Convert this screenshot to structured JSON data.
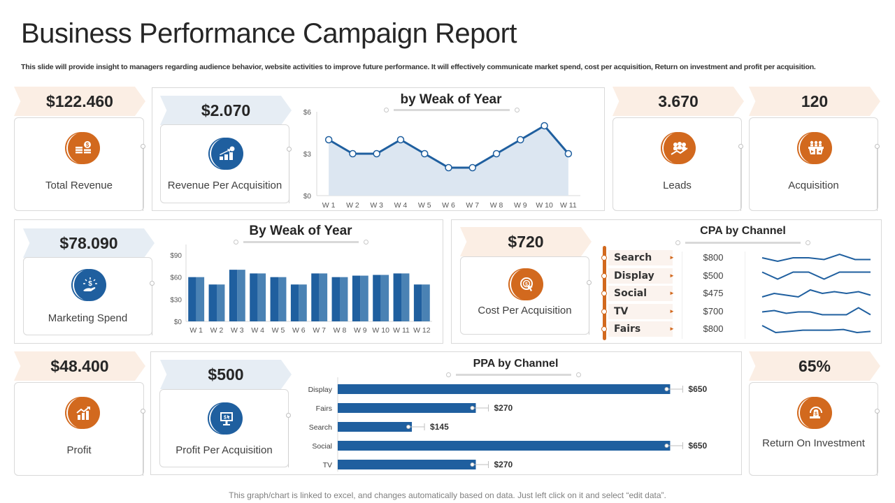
{
  "header": {
    "title": "Business Performance Campaign Report",
    "subtitle": "This slide will provide insight to managers regarding audience behavior, website activities to improve future performance. It will effectively communicate market spend, cost per acquisition, Return on investment  and profit per acquisition."
  },
  "kpis": {
    "total_revenue": {
      "value": "$122.460",
      "label": "Total Revenue",
      "icon": "coins-dollar-icon"
    },
    "revenue_per_acquisition": {
      "value": "$2.070",
      "label": "Revenue Per Acquisition",
      "icon": "growth-steps-dollar-icon"
    },
    "leads": {
      "value": "3.670",
      "label": "Leads",
      "icon": "people-trend-icon"
    },
    "acquisition": {
      "value": "120",
      "label": "Acquisition",
      "icon": "team-meeting-icon"
    },
    "marketing_spend": {
      "value": "$78.090",
      "label": "Marketing Spend",
      "icon": "hand-dollar-icon"
    },
    "cost_per_acquisition": {
      "value": "$720",
      "label": "Cost Per Acquisition",
      "icon": "target-click-icon"
    },
    "profit": {
      "value": "$48.400",
      "label": "Profit",
      "icon": "bar-chart-growth-icon"
    },
    "profit_per_acquisition": {
      "value": "$500",
      "label": "Profit Per Acquisition",
      "icon": "monitor-dollar-icon"
    },
    "roi": {
      "value": "65%",
      "label": "Return On Investment",
      "icon": "money-bag-cycle-icon"
    }
  },
  "colors": {
    "accent_orange": "#d2691e",
    "accent_blue": "#1f5f9f",
    "banner_orange": "#fbeee4",
    "banner_blue": "#e6edf4"
  },
  "chart_data": [
    {
      "type": "area",
      "title": "by Weak of Year",
      "categories": [
        "W 1",
        "W 2",
        "W 3",
        "W 4",
        "W 5",
        "W 6",
        "W 7",
        "W 8",
        "W 9",
        "W 10",
        "W 11"
      ],
      "values": [
        4,
        3,
        3,
        4,
        3,
        2,
        2,
        3,
        4,
        5,
        3
      ],
      "yticks": [
        "$0",
        "$3",
        "$6"
      ],
      "ylim": [
        0,
        6
      ],
      "xlabel": "",
      "ylabel": "",
      "grid": false
    },
    {
      "type": "bar",
      "title": "By Weak of Year",
      "categories": [
        "W 1",
        "W 2",
        "W 3",
        "W 4",
        "W 5",
        "W 6",
        "W 7",
        "W 8",
        "W 9",
        "W 10",
        "W 11",
        "W 12"
      ],
      "values": [
        60,
        50,
        70,
        65,
        60,
        50,
        65,
        60,
        62,
        63,
        65,
        50
      ],
      "yticks": [
        "$0",
        "$30",
        "$60",
        "$90"
      ],
      "ylim": [
        0,
        90
      ],
      "xlabel": "",
      "ylabel": "",
      "grid": false
    },
    {
      "type": "line",
      "title": "CPA by Channel",
      "channels": [
        "Search",
        "Display",
        "Social",
        "TV",
        "Fairs"
      ],
      "values": [
        "$800",
        "$500",
        "$475",
        "$700",
        "$800"
      ],
      "sparklines": [
        [
          5,
          3,
          5,
          5,
          4,
          7,
          4,
          4
        ],
        [
          4,
          3,
          4,
          4,
          3,
          4,
          4,
          4
        ],
        [
          3,
          5,
          4,
          3,
          7,
          5,
          6,
          5,
          6,
          4
        ],
        [
          4,
          5,
          3,
          4,
          4,
          2,
          2,
          2,
          7,
          2
        ],
        [
          6,
          3,
          3.5,
          4,
          4,
          4,
          4.3,
          3,
          3.5
        ]
      ]
    },
    {
      "type": "bar",
      "orientation": "horizontal",
      "title": "PPA by Channel",
      "categories": [
        "Display",
        "Fairs",
        "Search",
        "Social",
        "TV"
      ],
      "values": [
        650,
        270,
        145,
        650,
        270
      ],
      "labels": [
        "$650",
        "$270",
        "$145",
        "$650",
        "$270"
      ],
      "xlim": [
        0,
        700
      ]
    }
  ],
  "footer": {
    "note": "This graph/chart is linked to excel, and changes automatically based on data. Just left click on it and select “edit data”."
  }
}
